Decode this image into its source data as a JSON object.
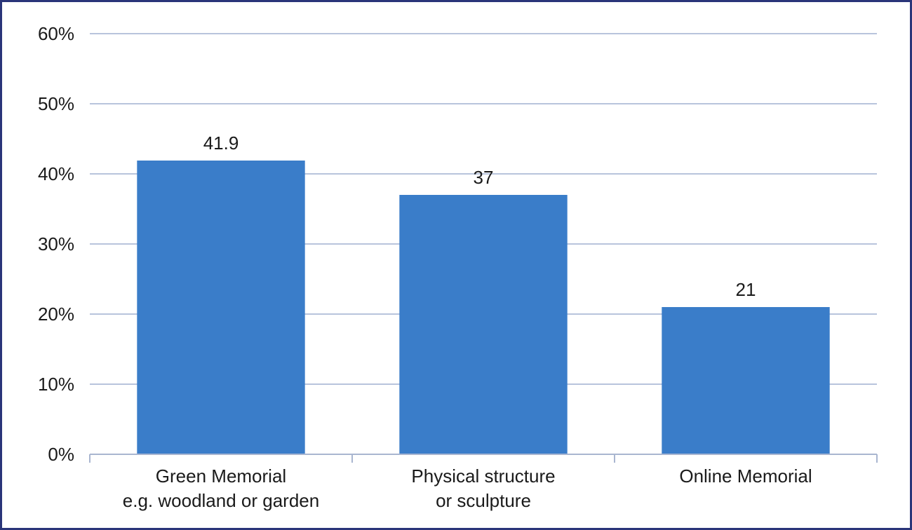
{
  "chart_data": {
    "type": "bar",
    "categories": [
      [
        "Green Memorial",
        "e.g. woodland or garden"
      ],
      [
        "Physical structure",
        "or sculpture"
      ],
      [
        "Online Memorial"
      ]
    ],
    "values": [
      41.9,
      37,
      21
    ],
    "data_labels": [
      "41.9",
      "37",
      "21"
    ],
    "ylim": [
      0,
      60
    ],
    "yticks": [
      0,
      10,
      20,
      30,
      40,
      50,
      60
    ],
    "ytick_labels": [
      "0%",
      "10%",
      "20%",
      "30%",
      "40%",
      "50%",
      "60%"
    ],
    "title": "",
    "xlabel": "",
    "ylabel": "",
    "grid": true,
    "legend": "none",
    "colors": {
      "bar": "#3a7dc9",
      "grid": "#b8c4dc",
      "axis": "#a9b6d0",
      "frame": "#2a3579",
      "text": "#1a1a1a"
    }
  }
}
